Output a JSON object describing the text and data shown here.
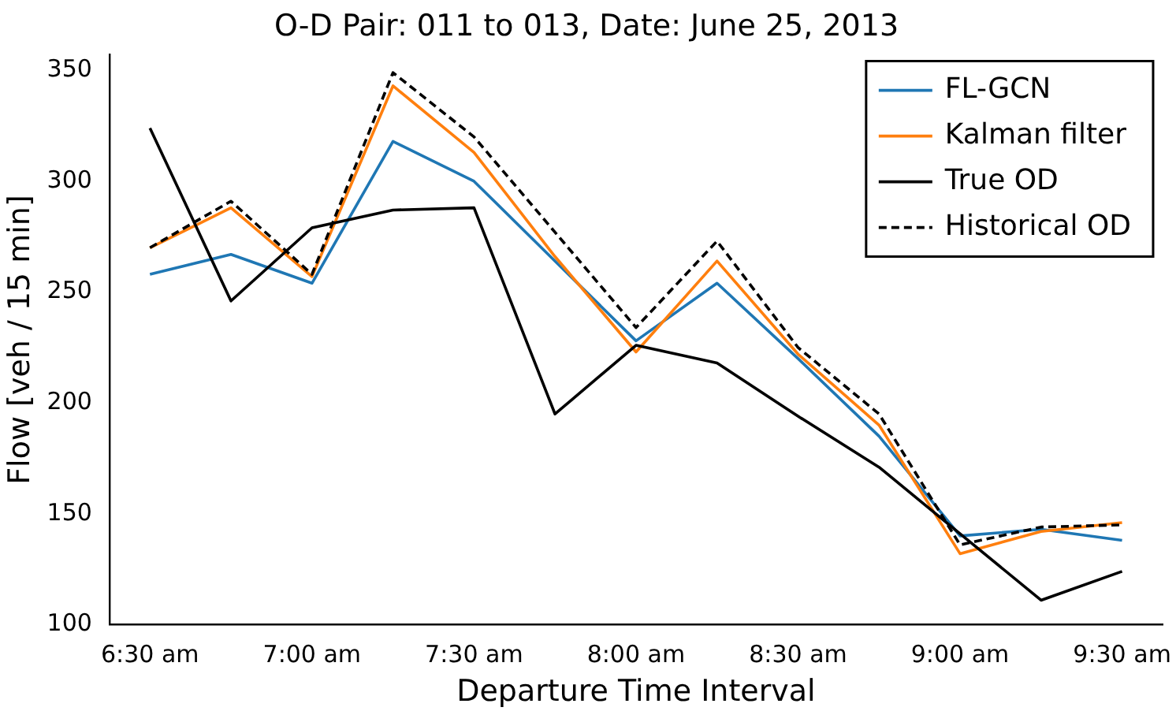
{
  "chart_data": {
    "type": "line",
    "title": "O-D Pair: 011 to 013, Date: June 25, 2013",
    "xlabel": "Departure Time Interval",
    "ylabel": "Flow [veh / 15 min]",
    "categories": [
      "6:30 am",
      null,
      "7:00 am",
      null,
      "7:30 am",
      null,
      "8:00 am",
      null,
      "8:30 am",
      null,
      "9:00 am",
      null,
      "9:30 am"
    ],
    "ylim": [
      100,
      357
    ],
    "yticks": [
      100,
      150,
      200,
      250,
      300,
      350
    ],
    "grid": false,
    "legend": "top right",
    "marker": "none",
    "series": [
      {
        "name": "FL-GCN",
        "color": "#1f77b4",
        "line_style": "solid",
        "values": [
          258,
          267,
          254,
          318,
          300,
          264,
          228,
          254,
          220,
          185,
          140,
          143,
          138
        ]
      },
      {
        "name": "Kalman filter",
        "color": "#ff7f0e",
        "line_style": "solid",
        "values": [
          270,
          288,
          257,
          343,
          313,
          266,
          223,
          264,
          222,
          190,
          132,
          142,
          146
        ]
      },
      {
        "name": "True OD",
        "color": "#000000",
        "line_style": "solid",
        "values": [
          324,
          246,
          279,
          287,
          288,
          195,
          226,
          218,
          194,
          171,
          141,
          111,
          124
        ]
      },
      {
        "name": "Historical OD",
        "color": "#000000",
        "line_style": "dashed",
        "values": [
          270,
          291,
          258,
          349,
          320,
          277,
          234,
          273,
          225,
          195,
          136,
          144,
          145
        ]
      }
    ]
  }
}
